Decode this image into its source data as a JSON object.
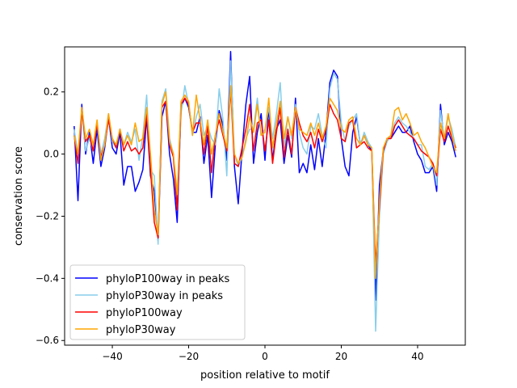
{
  "chart_data": {
    "type": "line",
    "xlabel": "position relative to motif",
    "ylabel": "conservation score",
    "xlim": [
      -52.5,
      52.5
    ],
    "ylim": [
      -0.615,
      0.345
    ],
    "xticks": [
      -40,
      -20,
      0,
      20,
      40
    ],
    "yticks": [
      0.2,
      0.0,
      -0.2,
      -0.4,
      -0.6
    ],
    "xtick_labels": [
      "−40",
      "−20",
      "0",
      "20",
      "40"
    ],
    "ytick_labels": [
      "0.2",
      "0.0",
      "−0.2",
      "−0.4",
      "−0.6"
    ],
    "grid": false,
    "legend_position": "lower-left",
    "x": [
      -50,
      -49,
      -48,
      -47,
      -46,
      -45,
      -44,
      -43,
      -42,
      -41,
      -40,
      -39,
      -38,
      -37,
      -36,
      -35,
      -34,
      -33,
      -32,
      -31,
      -30,
      -29,
      -28,
      -27,
      -26,
      -25,
      -24,
      -23,
      -22,
      -21,
      -20,
      -19,
      -18,
      -17,
      -16,
      -15,
      -14,
      -13,
      -12,
      -11,
      -10,
      -9,
      -8,
      -7,
      -6,
      -5,
      -4,
      -3,
      -2,
      -1,
      0,
      1,
      2,
      3,
      4,
      5,
      6,
      7,
      8,
      9,
      10,
      11,
      12,
      13,
      14,
      15,
      16,
      17,
      18,
      19,
      20,
      21,
      22,
      23,
      24,
      25,
      26,
      27,
      28,
      29,
      30,
      31,
      32,
      33,
      34,
      35,
      36,
      37,
      38,
      39,
      40,
      41,
      42,
      43,
      44,
      45,
      46,
      47,
      48,
      49,
      50
    ],
    "series": [
      {
        "name": "phyloP100way in peaks",
        "color": "#0000ff",
        "values": [
          0.09,
          -0.15,
          0.16,
          0.0,
          0.07,
          -0.03,
          0.08,
          -0.04,
          0.02,
          0.12,
          0.02,
          0.0,
          0.07,
          -0.1,
          -0.04,
          -0.04,
          -0.12,
          -0.09,
          -0.05,
          0.12,
          -0.07,
          -0.12,
          -0.28,
          0.12,
          0.17,
          0.0,
          -0.08,
          -0.22,
          0.15,
          0.18,
          0.15,
          0.07,
          0.07,
          0.12,
          -0.03,
          0.06,
          -0.14,
          0.03,
          0.14,
          0.09,
          -0.02,
          0.33,
          -0.04,
          -0.16,
          0.01,
          0.16,
          0.25,
          -0.03,
          0.07,
          0.13,
          -0.02,
          0.15,
          -0.02,
          0.08,
          0.11,
          -0.03,
          0.06,
          -0.01,
          0.18,
          -0.06,
          -0.03,
          -0.06,
          0.03,
          -0.05,
          0.05,
          -0.04,
          0.07,
          0.23,
          0.27,
          0.25,
          0.05,
          -0.04,
          -0.07,
          0.07,
          0.12,
          0.03,
          0.06,
          0.03,
          0.01,
          -0.47,
          -0.1,
          0.01,
          0.05,
          0.05,
          0.07,
          0.09,
          0.07,
          0.07,
          0.09,
          0.04,
          0.0,
          -0.02,
          -0.06,
          -0.06,
          -0.04,
          -0.12,
          0.16,
          0.03,
          0.07,
          0.04,
          -0.01
        ]
      },
      {
        "name": "phyloP30way in peaks",
        "color": "#87ceeb",
        "values": [
          0.08,
          0.0,
          0.14,
          0.01,
          0.05,
          0.01,
          0.1,
          0.0,
          0.05,
          0.13,
          0.04,
          0.02,
          0.08,
          0.03,
          0.07,
          0.04,
          0.08,
          -0.02,
          0.06,
          0.19,
          -0.05,
          -0.07,
          -0.29,
          0.17,
          0.21,
          0.05,
          0.0,
          -0.17,
          0.13,
          0.22,
          0.16,
          0.06,
          0.12,
          0.16,
          0.06,
          0.09,
          0.05,
          0.03,
          0.21,
          0.11,
          -0.07,
          0.3,
          0.0,
          -0.04,
          -0.01,
          0.05,
          0.08,
          0.08,
          0.18,
          0.06,
          0.08,
          0.15,
          0.05,
          0.13,
          0.23,
          0.02,
          0.12,
          0.05,
          0.16,
          0.07,
          0.02,
          0.0,
          0.09,
          0.08,
          0.13,
          0.06,
          0.02,
          0.21,
          0.26,
          0.24,
          0.1,
          0.04,
          0.09,
          0.11,
          0.13,
          0.03,
          0.07,
          0.04,
          0.02,
          -0.57,
          -0.2,
          0.0,
          0.04,
          0.06,
          0.1,
          0.12,
          0.1,
          0.09,
          0.07,
          0.05,
          0.03,
          0.03,
          -0.04,
          -0.05,
          -0.03,
          -0.1,
          0.14,
          0.05,
          0.12,
          0.08,
          0.02
        ]
      },
      {
        "name": "phyloP100way",
        "color": "#ff0000",
        "values": [
          0.06,
          -0.03,
          0.14,
          0.04,
          0.06,
          0.01,
          0.1,
          -0.01,
          0.03,
          0.11,
          0.05,
          0.02,
          0.08,
          0.01,
          0.04,
          0.01,
          0.02,
          0.0,
          0.02,
          0.13,
          -0.05,
          -0.22,
          -0.27,
          0.15,
          0.17,
          0.03,
          -0.01,
          -0.18,
          0.16,
          0.18,
          0.16,
          0.07,
          0.1,
          0.1,
          0.0,
          0.09,
          -0.06,
          0.06,
          0.11,
          0.06,
          0.01,
          0.21,
          -0.03,
          -0.04,
          0.02,
          0.08,
          0.16,
          0.01,
          0.1,
          0.11,
          0.01,
          0.11,
          -0.03,
          0.07,
          0.15,
          -0.01,
          0.08,
          0.0,
          0.15,
          0.1,
          0.06,
          0.04,
          0.07,
          0.02,
          0.08,
          0.04,
          0.08,
          0.16,
          0.13,
          0.11,
          0.05,
          0.04,
          0.1,
          0.11,
          0.02,
          0.03,
          0.04,
          0.02,
          0.01,
          -0.36,
          -0.17,
          0.01,
          0.05,
          0.05,
          0.09,
          0.11,
          0.09,
          0.07,
          0.06,
          0.05,
          0.03,
          0.01,
          0.0,
          -0.01,
          -0.03,
          -0.07,
          0.08,
          0.04,
          0.09,
          0.05,
          0.02
        ]
      },
      {
        "name": "phyloP30way",
        "color": "#ffa500",
        "values": [
          0.06,
          0.0,
          0.15,
          0.05,
          0.08,
          0.03,
          0.11,
          -0.02,
          0.03,
          0.13,
          0.05,
          0.03,
          0.08,
          0.03,
          0.06,
          0.03,
          0.1,
          0.04,
          0.05,
          0.15,
          0.0,
          -0.18,
          -0.26,
          0.16,
          0.2,
          0.04,
          0.0,
          -0.13,
          0.17,
          0.19,
          0.17,
          0.06,
          0.19,
          0.11,
          0.03,
          0.11,
          0.0,
          0.06,
          0.13,
          0.07,
          0.02,
          0.22,
          0.0,
          -0.03,
          -0.01,
          0.04,
          0.12,
          0.07,
          0.16,
          0.06,
          0.07,
          0.18,
          0.02,
          0.1,
          0.17,
          0.05,
          0.12,
          0.06,
          0.15,
          0.08,
          0.07,
          0.06,
          0.1,
          0.06,
          0.1,
          0.05,
          0.09,
          0.18,
          0.16,
          0.14,
          0.08,
          0.07,
          0.11,
          0.12,
          0.05,
          0.03,
          0.06,
          0.03,
          0.02,
          -0.4,
          -0.15,
          0.02,
          0.05,
          0.06,
          0.14,
          0.15,
          0.11,
          0.13,
          0.1,
          0.06,
          0.07,
          0.04,
          0.02,
          -0.01,
          -0.04,
          -0.06,
          0.1,
          0.05,
          0.13,
          0.06,
          0.01
        ]
      }
    ]
  }
}
